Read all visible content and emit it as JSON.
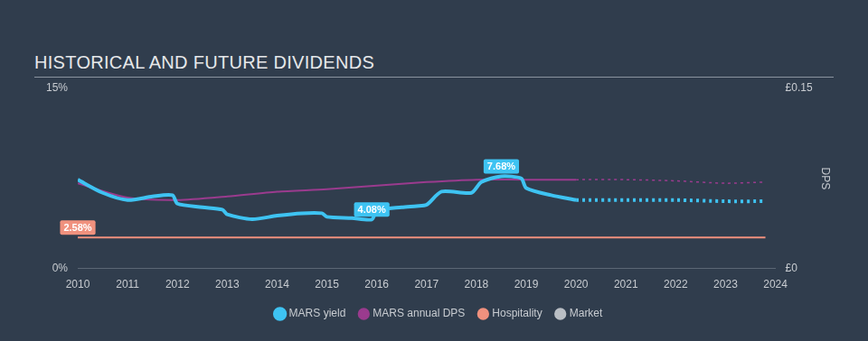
{
  "chart_data": {
    "type": "line",
    "title": "HISTORICAL AND FUTURE DIVIDENDS",
    "y2label": "DPS",
    "xlim": [
      2010,
      2024
    ],
    "xticks": [
      2010,
      2011,
      2012,
      2013,
      2014,
      2015,
      2016,
      2017,
      2018,
      2019,
      2020,
      2021,
      2022,
      2023,
      2024
    ],
    "ylim": [
      0,
      15
    ],
    "yticks": [
      {
        "value": 0,
        "label": "0%"
      },
      {
        "value": 15,
        "label": "15%"
      }
    ],
    "y2lim": [
      0,
      0.15
    ],
    "y2ticks": [
      {
        "value": 0,
        "label": "£0"
      },
      {
        "value": 0.15,
        "label": "£0.15"
      }
    ],
    "grid": false,
    "legend": "bottom",
    "series": [
      {
        "name": "MARS yield",
        "color": "#3ec3f2",
        "line_style": "solid",
        "x": [
          2010,
          2010.5,
          2011,
          2011.5,
          2011.9,
          2012,
          2012.5,
          2012.9,
          2013,
          2013.5,
          2014,
          2014.5,
          2014.9,
          2015,
          2015.5,
          2015.9,
          2016,
          2016.5,
          2016.8,
          2017,
          2017.3,
          2017.9,
          2018.1,
          2018.5,
          2018.9,
          2019,
          2019.5,
          2020
        ],
        "values": [
          7.4,
          6.3,
          5.7,
          6.0,
          6.1,
          5.4,
          5.1,
          4.9,
          4.5,
          4.1,
          4.4,
          4.6,
          4.6,
          4.3,
          4.2,
          4.08,
          4.8,
          5.1,
          5.2,
          5.3,
          6.4,
          6.3,
          7.2,
          7.68,
          7.5,
          6.7,
          6.1,
          5.7
        ],
        "forecast": {
          "line_style": "dotted",
          "x": [
            2020,
            2021,
            2022,
            2023,
            2023.8
          ],
          "values": [
            5.7,
            5.7,
            5.7,
            5.6,
            5.6
          ]
        }
      },
      {
        "name": "MARS annual DPS",
        "color": "#9a3b8e",
        "line_style": "solid",
        "axis": "y2",
        "x": [
          2010,
          2011,
          2012,
          2013,
          2014,
          2015,
          2016,
          2017,
          2018,
          2019,
          2020
        ],
        "values": [
          0.071,
          0.059,
          0.057,
          0.06,
          0.064,
          0.066,
          0.069,
          0.072,
          0.074,
          0.074,
          0.074
        ],
        "forecast": {
          "line_style": "dotted",
          "x": [
            2020,
            2021,
            2022,
            2023,
            2023.8
          ],
          "values": [
            0.074,
            0.074,
            0.073,
            0.071,
            0.072
          ]
        }
      },
      {
        "name": "Hospitality",
        "color": "#f0917e",
        "line_style": "solid",
        "x": [
          2010,
          2023.8
        ],
        "values": [
          2.58,
          2.58
        ]
      },
      {
        "name": "Market",
        "color": "#b9bec4",
        "line_style": "solid",
        "x": [],
        "values": []
      }
    ],
    "annotations": [
      {
        "text": "7.68%",
        "series": "MARS yield",
        "x": 2018.5,
        "y": 7.68
      },
      {
        "text": "4.08%",
        "series": "MARS yield",
        "x": 2015.9,
        "y": 4.08
      },
      {
        "text": "2.58%",
        "series": "Hospitality",
        "x": 2010,
        "y": 2.58
      }
    ]
  }
}
